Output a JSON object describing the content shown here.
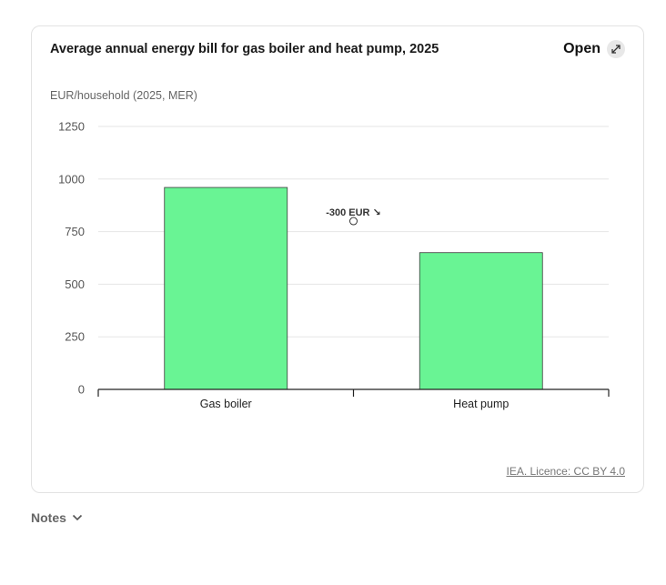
{
  "card": {
    "title": "Average annual energy bill for gas boiler and heat pump, 2025",
    "open_label": "Open",
    "open_icon": "expand-icon",
    "licence_text": "IEA. Licence: CC BY 4.0"
  },
  "notes": {
    "label": "Notes",
    "icon": "chevron-down-icon"
  },
  "chart_data": {
    "type": "bar",
    "ylabel": "EUR/household (2025, MER)",
    "categories": [
      "Gas boiler",
      "Heat pump"
    ],
    "values": [
      960,
      650
    ],
    "ylim": [
      0,
      1250
    ],
    "yticks": [
      0,
      250,
      500,
      750,
      1000,
      1250
    ],
    "grid": true,
    "bar_color": "#69f494",
    "annotation": {
      "text": "-300 EUR ↘",
      "x_between": [
        "Gas boiler",
        "Heat pump"
      ],
      "y": 800
    }
  }
}
